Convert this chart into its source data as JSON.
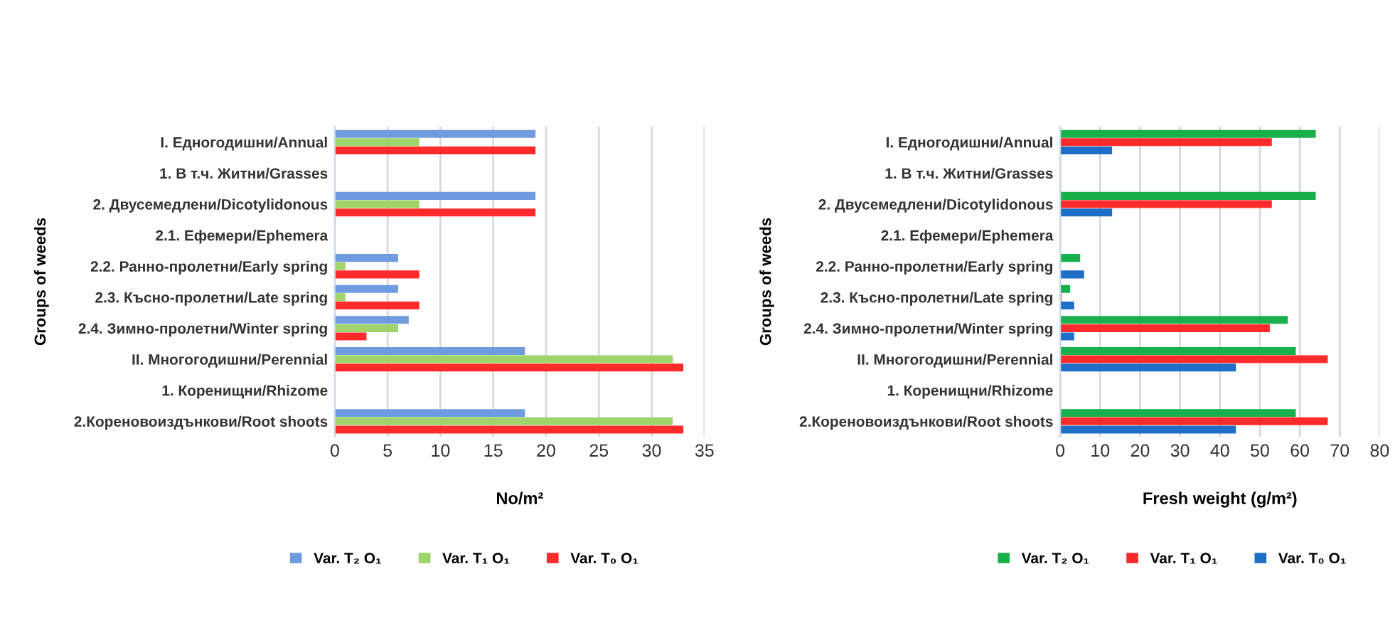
{
  "chart_data": [
    {
      "type": "bar",
      "orientation": "horizontal",
      "ylabel": "Groups of weeds",
      "xlabel": "No/m²",
      "categories": [
        "I. Едногодишни/Annual",
        "1. В т.ч. Житни/Grasses",
        "2. Двусемедлени/Dicotylidonous",
        "2.1. Ефемери/Ephemera",
        "2.2. Ранно-пролетни/Early spring",
        "2.3. Късно-пролетни/Late spring",
        "2.4. Зимно-пролетни/Winter spring",
        "II. Многогодишни/Perennial",
        "1. Коренищни/Rhizome",
        "2.Кореновоиздънкови/Root shoots"
      ],
      "series": [
        {
          "name": "Var. T₂ O₁",
          "color": "#6f9be0",
          "values": [
            19,
            null,
            19,
            null,
            6,
            6,
            7,
            18,
            null,
            18
          ]
        },
        {
          "name": "Var. T₁ O₁",
          "color": "#9fd46a",
          "values": [
            8,
            null,
            8,
            null,
            1,
            1,
            6,
            32,
            null,
            32
          ]
        },
        {
          "name": "Var. T₀ O₁",
          "color": "#ff2a2a",
          "values": [
            19,
            null,
            19,
            null,
            8,
            8,
            3,
            33,
            null,
            33
          ]
        }
      ],
      "xlim": [
        0,
        35
      ],
      "xticks": [
        0,
        5,
        10,
        15,
        20,
        25,
        30,
        35
      ],
      "grid": "x",
      "legend": "bottom"
    },
    {
      "type": "bar",
      "orientation": "horizontal",
      "ylabel": "Groups of weeds",
      "xlabel": "Fresh weight (g/m²)",
      "categories": [
        "I. Едногодишни/Annual",
        "1. В т.ч. Житни/Grasses",
        "2. Двусемедлени/Dicotylidonous",
        "2.1. Ефемери/Ephemera",
        "2.2. Ранно-пролетни/Early spring",
        "2.3. Късно-пролетни/Late spring",
        "2.4. Зимно-пролетни/Winter spring",
        "II. Многогодишни/Perennial",
        "1. Коренищни/Rhizome",
        "2.Кореновоиздънкови/Root shoots"
      ],
      "series": [
        {
          "name": "Var. T₂ O₁",
          "color": "#18b04a",
          "values": [
            64,
            null,
            64,
            null,
            5,
            2.5,
            57,
            59,
            null,
            59
          ]
        },
        {
          "name": "Var. T₁ O₁",
          "color": "#ff2a2a",
          "values": [
            53,
            null,
            53,
            null,
            null,
            0.3,
            52.5,
            67,
            null,
            67
          ]
        },
        {
          "name": "Var. T₀ O₁",
          "color": "#1f6fc8",
          "values": [
            13,
            null,
            13,
            null,
            6,
            3.5,
            3.5,
            44,
            null,
            44
          ]
        }
      ],
      "xlim": [
        0,
        80
      ],
      "xticks": [
        0,
        10,
        20,
        30,
        40,
        50,
        60,
        70,
        80
      ],
      "grid": "x",
      "legend": "bottom"
    }
  ]
}
